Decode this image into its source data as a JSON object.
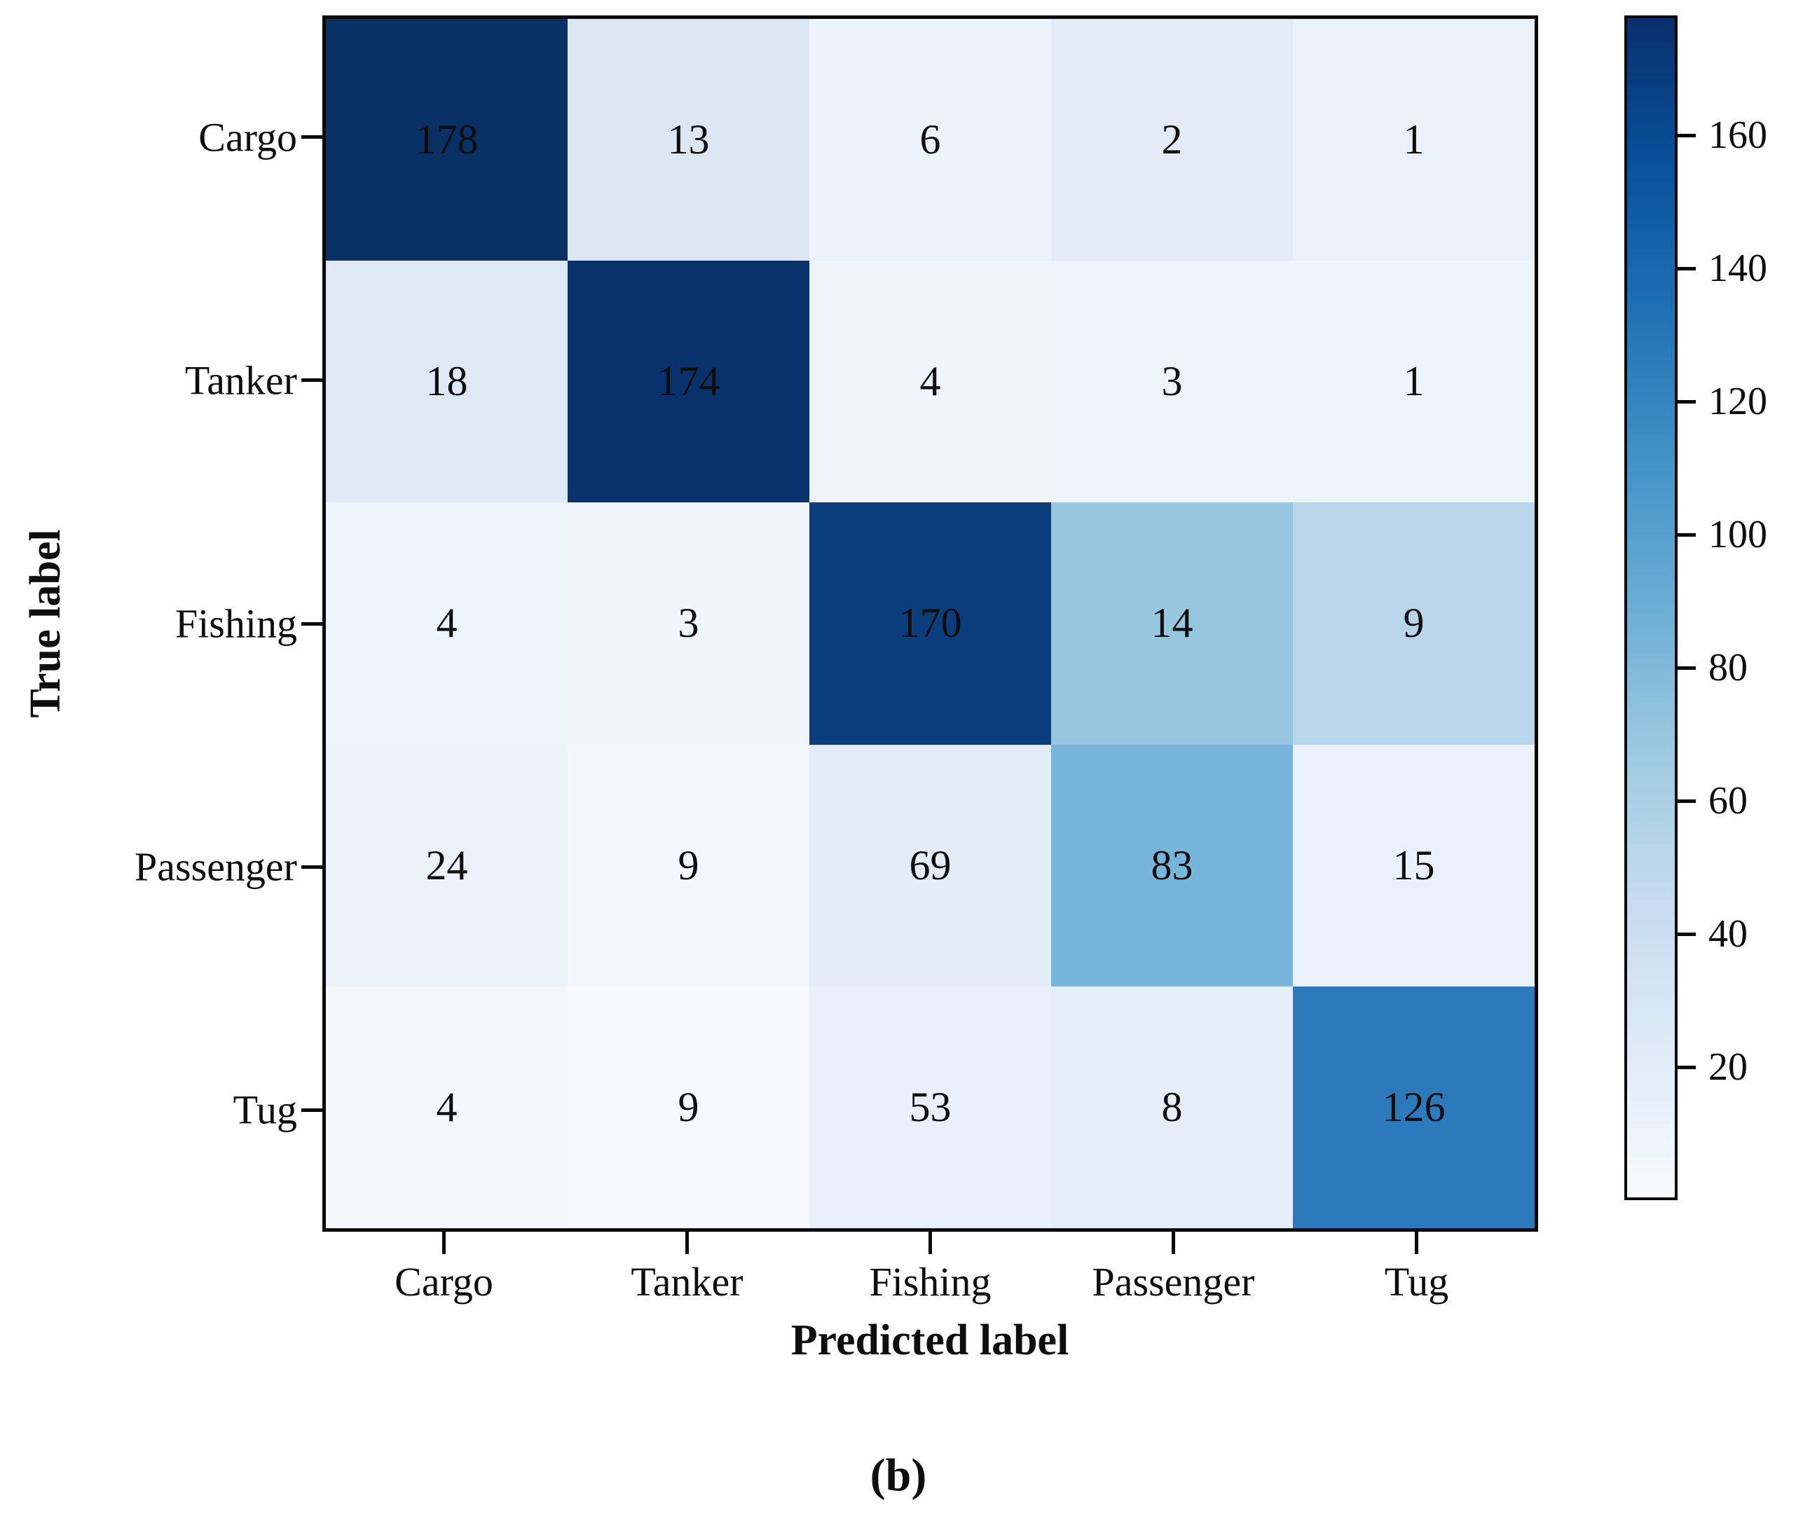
{
  "chart_data": {
    "type": "heatmap",
    "title": "",
    "xlabel": "Predicted label",
    "ylabel": "True label",
    "caption": "(b)",
    "x_categories": [
      "Cargo",
      "Tanker",
      "Fishing",
      "Passenger",
      "Tug"
    ],
    "y_categories": [
      "Cargo",
      "Tanker",
      "Fishing",
      "Passenger",
      "Tug"
    ],
    "values": [
      [
        178,
        13,
        6,
        2,
        1
      ],
      [
        18,
        174,
        4,
        3,
        1
      ],
      [
        4,
        3,
        170,
        14,
        9
      ],
      [
        24,
        9,
        69,
        83,
        15
      ],
      [
        4,
        9,
        53,
        8,
        126
      ]
    ],
    "cell_colors": [
      [
        "#0a3166",
        "#dde7f3",
        "#edf3fa",
        "#e2ebf6",
        "#eaf1f9"
      ],
      [
        "#dfe9f5",
        "#09316b",
        "#f0f5fc",
        "#eef4fb",
        "#eef4fb"
      ],
      [
        "#eef4fb",
        "#f1f6fc",
        "#0c3d7c",
        "#97c6e0",
        "#b8d5ea"
      ],
      [
        "#ebf2fa",
        "#f3f7fd",
        "#e3ecf7",
        "#77b5db",
        "#eaf1fa"
      ],
      [
        "#f4f8fd",
        "#f6f9fd",
        "#e9f0f9",
        "#e5edf7",
        "#2c7abc"
      ]
    ],
    "text_color": "#0e0e0e",
    "axis_color": "#0a0a0a",
    "grid": false,
    "colorbar": {
      "position": "right",
      "vmin": 0,
      "vmax": 178,
      "ticks": [
        20,
        40,
        60,
        80,
        100,
        120,
        140,
        160
      ],
      "colormap": "Blues",
      "gradient_low_to_high": [
        "#f7fbff",
        "#deebf7",
        "#c6dbef",
        "#9ecae1",
        "#6baed6",
        "#4292c6",
        "#2171b5",
        "#08519c",
        "#08306b"
      ]
    }
  }
}
